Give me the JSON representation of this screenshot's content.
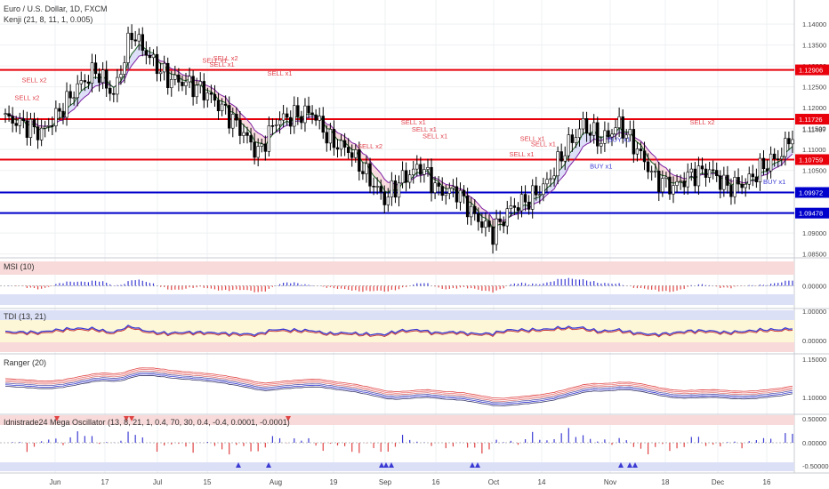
{
  "title": "Euro / U.S. Dollar, 1D, FXCM",
  "indicator": "Kenji (21, 8, 11, 1, 0.005)",
  "panels": {
    "msi": "MSI (10)",
    "tdi": "TDI (13, 21)",
    "ranger": "Ranger (20)",
    "mega": "Idnistrade24 Mega Oscillator (13, 8, 21, 1, 0.4, 70, 30, 0.4, -0.4, 0.0001, -0.0001)"
  },
  "colors": {
    "resistance": "#e8000b",
    "support": "#0000cc",
    "up": "#ffffff",
    "down": "#000000",
    "fast": "#1b5e20",
    "slow": "#7b1fa2"
  },
  "chart_data": {
    "type": "candlestick",
    "x_labels": [
      "Jun",
      "17",
      "Jul",
      "15",
      "Aug",
      "19",
      "Sep",
      "16",
      "Oct",
      "14",
      "Nov",
      "18",
      "Dec",
      "16"
    ],
    "ylim": [
      1.0845,
      1.1445
    ],
    "y_ticks": [
      "1.14000",
      "1.13500",
      "1.13000",
      "1.12500",
      "1.12000",
      "1.11500",
      "1.11000",
      "1.10500",
      "1.10000",
      "1.09500",
      "1.09000",
      "1.08500"
    ],
    "levels": [
      {
        "label": "1.12906",
        "value": 1.12906,
        "kind": "resistance"
      },
      {
        "label": "1.11726",
        "value": 1.11726,
        "kind": "resistance"
      },
      {
        "label": "1.10759",
        "value": 1.10759,
        "kind": "resistance"
      },
      {
        "label": "1.09972",
        "value": 1.09972,
        "kind": "support"
      },
      {
        "label": "1.09478",
        "value": 1.09478,
        "kind": "support"
      }
    ],
    "price_tick": "1.11487",
    "close_anchors": [
      [
        0,
        1.1175
      ],
      [
        5,
        1.116
      ],
      [
        10,
        1.114
      ],
      [
        15,
        1.119
      ],
      [
        20,
        1.125
      ],
      [
        25,
        1.129
      ],
      [
        30,
        1.123
      ],
      [
        35,
        1.138
      ],
      [
        40,
        1.132
      ],
      [
        45,
        1.127
      ],
      [
        50,
        1.126
      ],
      [
        55,
        1.124
      ],
      [
        60,
        1.12
      ],
      [
        65,
        1.115
      ],
      [
        70,
        1.109
      ],
      [
        75,
        1.117
      ],
      [
        80,
        1.118
      ],
      [
        85,
        1.119
      ],
      [
        90,
        1.112
      ],
      [
        95,
        1.11
      ],
      [
        100,
        1.104
      ],
      [
        105,
        1.098
      ],
      [
        110,
        1.103
      ],
      [
        115,
        1.106
      ],
      [
        120,
        1.1
      ],
      [
        125,
        1.1
      ],
      [
        130,
        1.094
      ],
      [
        135,
        1.09
      ],
      [
        140,
        1.096
      ],
      [
        145,
        1.098
      ],
      [
        150,
        1.102
      ],
      [
        155,
        1.11
      ],
      [
        160,
        1.116
      ],
      [
        165,
        1.112
      ],
      [
        170,
        1.116
      ],
      [
        175,
        1.11
      ],
      [
        180,
        1.103
      ],
      [
        185,
        1.101
      ],
      [
        190,
        1.104
      ],
      [
        195,
        1.105
      ],
      [
        200,
        1.101
      ],
      [
        205,
        1.102
      ],
      [
        210,
        1.106
      ],
      [
        215,
        1.109
      ],
      [
        218,
        1.114
      ]
    ],
    "signals": [
      {
        "text": "SELL x2",
        "i": 6
      },
      {
        "text": "SELL x2",
        "i": 8
      },
      {
        "text": "SELL x1",
        "i": 58
      },
      {
        "text": "SELL x2",
        "i": 61
      },
      {
        "text": "SELL x1",
        "i": 60
      },
      {
        "text": "SELL x1",
        "i": 76
      },
      {
        "text": "SELL x2",
        "i": 101
      },
      {
        "text": "SELL x1",
        "i": 113
      },
      {
        "text": "SELL x1",
        "i": 116
      },
      {
        "text": "SELL x1",
        "i": 119
      },
      {
        "text": "SELL x1",
        "i": 143
      },
      {
        "text": "SELL x1",
        "i": 146
      },
      {
        "text": "SELL x1",
        "i": 149
      },
      {
        "text": "BUY x1",
        "i": 165
      },
      {
        "text": "BUY x1",
        "i": 170
      },
      {
        "text": "SELL x2",
        "i": 193
      },
      {
        "text": "BUY x1",
        "i": 213
      }
    ],
    "msi_ticks": [
      "0.00000"
    ],
    "tdi_ticks": [
      "1.00000",
      "0.00000"
    ],
    "ranger_ticks": [
      "1.15000",
      "1.10000"
    ],
    "mega_ticks": [
      "0.50000",
      "0.00000",
      "-0.50000"
    ]
  }
}
